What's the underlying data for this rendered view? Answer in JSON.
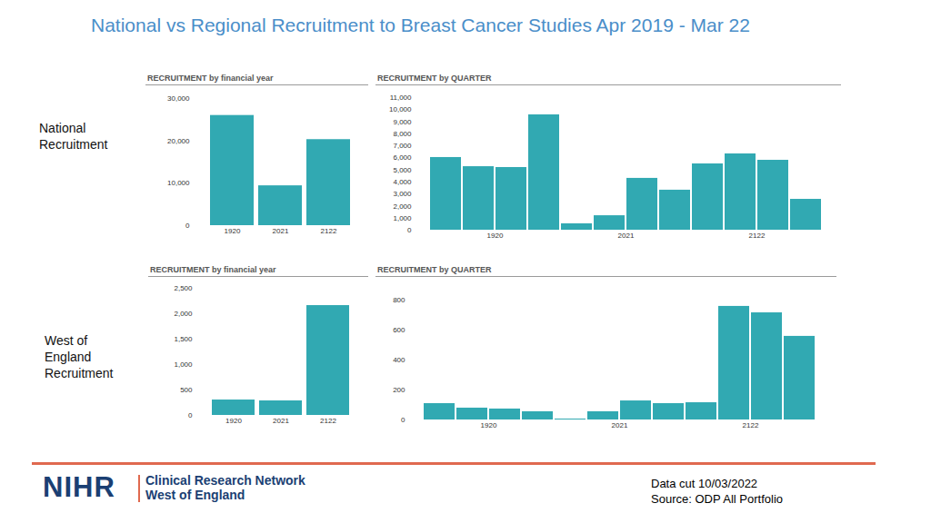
{
  "title": "National vs Regional Recruitment to Breast Cancer Studies Apr 2019 - Mar 22",
  "row_labels": [
    "National Recruitment",
    "West of England Recruitment"
  ],
  "chart_data": [
    {
      "type": "bar",
      "title": "RECRUITMENT by financial year",
      "categories": [
        "1920",
        "2021",
        "2122"
      ],
      "values": [
        26000,
        9400,
        20300
      ],
      "color": "#31a9b2",
      "ylim": [
        0,
        30000
      ],
      "yticks": [
        0,
        {
          "value": 10000,
          "label": "10,000"
        },
        {
          "value": 20000,
          "label": "20,000"
        },
        {
          "value": 30000,
          "label": "30,000"
        }
      ],
      "grid": false
    },
    {
      "type": "bar",
      "title": "RECRUITMENT by QUARTER",
      "categories": [
        null,
        "1920",
        null,
        null,
        null,
        "2021",
        null,
        null,
        null,
        "2122",
        null,
        null
      ],
      "values": [
        6030,
        5270,
        5200,
        9570,
        530,
        1200,
        4300,
        3320,
        5500,
        6330,
        5800,
        2560
      ],
      "color": "#31a9b2",
      "ylim": [
        0,
        11000
      ],
      "yticks": [
        0,
        {
          "value": 1000,
          "label": "1,000"
        },
        {
          "value": 2000,
          "label": "2,000"
        },
        {
          "value": 3000,
          "label": "3,000"
        },
        {
          "value": 4000,
          "label": "4,000"
        },
        {
          "value": 5000,
          "label": "5,000"
        },
        {
          "value": 6000,
          "label": "6,000"
        },
        {
          "value": 7000,
          "label": "7,000"
        },
        {
          "value": 8000,
          "label": "8,000"
        },
        {
          "value": 9000,
          "label": "9,000"
        },
        {
          "value": 10000,
          "label": "10,000"
        },
        {
          "value": 11000,
          "label": "11,000"
        }
      ],
      "grid": false
    },
    {
      "type": "bar",
      "title": "RECRUITMENT by financial year",
      "categories": [
        "1920",
        "2021",
        "2122"
      ],
      "values": [
        303,
        286,
        2160
      ],
      "color": "#31a9b2",
      "ylim": [
        0,
        2500
      ],
      "yticks": [
        0,
        500,
        {
          "value": 1000,
          "label": "1,000"
        },
        {
          "value": 1500,
          "label": "1,500"
        },
        {
          "value": 2000,
          "label": "2,000"
        },
        {
          "value": 2500,
          "label": "2,500"
        }
      ],
      "grid": false
    },
    {
      "type": "bar",
      "title": "RECRUITMENT by QUARTER",
      "categories": [
        null,
        "1920",
        null,
        null,
        null,
        "2021",
        null,
        null,
        null,
        "2122",
        null,
        null
      ],
      "values": [
        109,
        79,
        73,
        55,
        6,
        55,
        127,
        109,
        115,
        758,
        715,
        558
      ],
      "color": "#31a9b2",
      "ylim": [
        0,
        800
      ],
      "yticks": [
        0,
        200,
        400,
        600,
        800
      ],
      "grid": false
    }
  ],
  "footer": {
    "logo": "NIHR",
    "network": [
      "Clinical Research Network",
      "West of England"
    ],
    "notes": [
      "Data cut 10/03/2022",
      "Source: ODP All Portfolio"
    ]
  }
}
